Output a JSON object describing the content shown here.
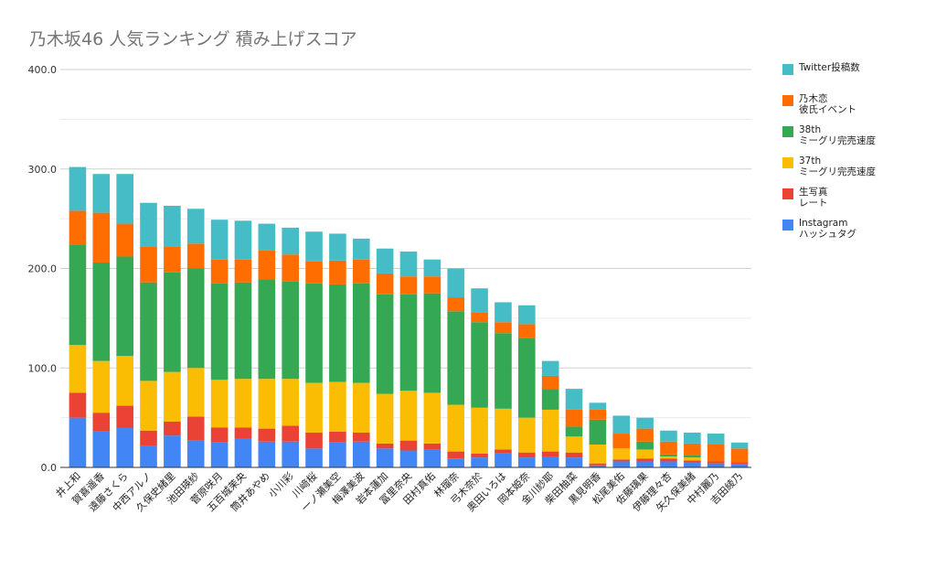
{
  "chart_data": {
    "type": "bar",
    "stacked": true,
    "title": "乃木坂46 人気ランキング 積み上げスコア",
    "xlabel": "",
    "ylabel": "",
    "ylim": [
      0,
      400
    ],
    "yticks": [
      "0.0",
      "100.0",
      "200.0",
      "300.0",
      "400.0"
    ],
    "grid": true,
    "legend_position": "right",
    "categories": [
      "井上和",
      "賀喜遥香",
      "遠藤さくら",
      "中西アルノ",
      "久保史緒里",
      "池田瑛紗",
      "菅原咲月",
      "五百城茉央",
      "筒井あやめ",
      "小川彩",
      "川﨑桜",
      "一ノ瀬美空",
      "梅澤美波",
      "岩本蓮加",
      "冨里奈央",
      "田村真佑",
      "林瑠奈",
      "弓木奈於",
      "奥田いろは",
      "岡本姫奈",
      "金川紗耶",
      "柴田柚菜",
      "黒見明香",
      "松尾美佑",
      "佐藤璃果",
      "伊藤理々杏",
      "矢久保美緒",
      "中村麗乃",
      "吉田綾乃"
    ],
    "series": [
      {
        "name": "Instagram\nハッシュタグ",
        "color": "#4285f4",
        "values": [
          50,
          36,
          40,
          22,
          32,
          27,
          25,
          29,
          26,
          26,
          19,
          25,
          26,
          19,
          17,
          18,
          9,
          10,
          14,
          10,
          11,
          10,
          2,
          6,
          6,
          6,
          5,
          4,
          3
        ]
      },
      {
        "name": "生写真\nレート",
        "color": "#ea4335",
        "values": [
          25,
          19,
          22,
          15,
          14,
          24,
          15,
          11,
          13,
          16,
          16,
          11,
          9,
          5,
          10,
          6,
          7,
          4,
          4,
          5,
          5,
          5,
          2,
          2,
          3,
          3,
          2,
          2,
          2
        ]
      },
      {
        "name": "37th\nミーグリ完売速度",
        "color": "#fbbc04",
        "values": [
          48,
          52,
          50,
          50,
          50,
          49,
          48,
          49,
          50,
          47,
          50,
          50,
          50,
          50,
          50,
          51,
          47,
          46,
          41,
          35,
          42,
          16,
          19,
          11,
          9,
          2,
          3,
          0,
          0
        ]
      },
      {
        "name": "38th\nミーグリ完売速度",
        "color": "#34a853",
        "values": [
          101,
          99,
          100,
          99,
          100,
          100,
          97,
          97,
          100,
          98,
          100,
          98,
          100,
          100,
          97,
          100,
          94,
          86,
          76,
          80,
          21,
          10,
          25,
          0,
          8,
          2,
          2,
          0,
          0
        ]
      },
      {
        "name": "乃木恋\n彼氏イベント",
        "color": "#ff6d01",
        "values": [
          34,
          50,
          33,
          36,
          26,
          25,
          24,
          23,
          29,
          27,
          22,
          24,
          24,
          21,
          18,
          17,
          14,
          10,
          11,
          14,
          13,
          17,
          10,
          15,
          13,
          13,
          12,
          17,
          14
        ]
      },
      {
        "name": "Twitter投稿数",
        "color": "#46bdc6",
        "values": [
          44,
          39,
          50,
          44,
          41,
          35,
          40,
          39,
          27,
          27,
          30,
          27,
          21,
          25,
          25,
          17,
          29,
          24,
          20,
          19,
          15,
          21,
          7,
          18,
          11,
          11,
          11,
          11,
          6
        ]
      }
    ]
  }
}
